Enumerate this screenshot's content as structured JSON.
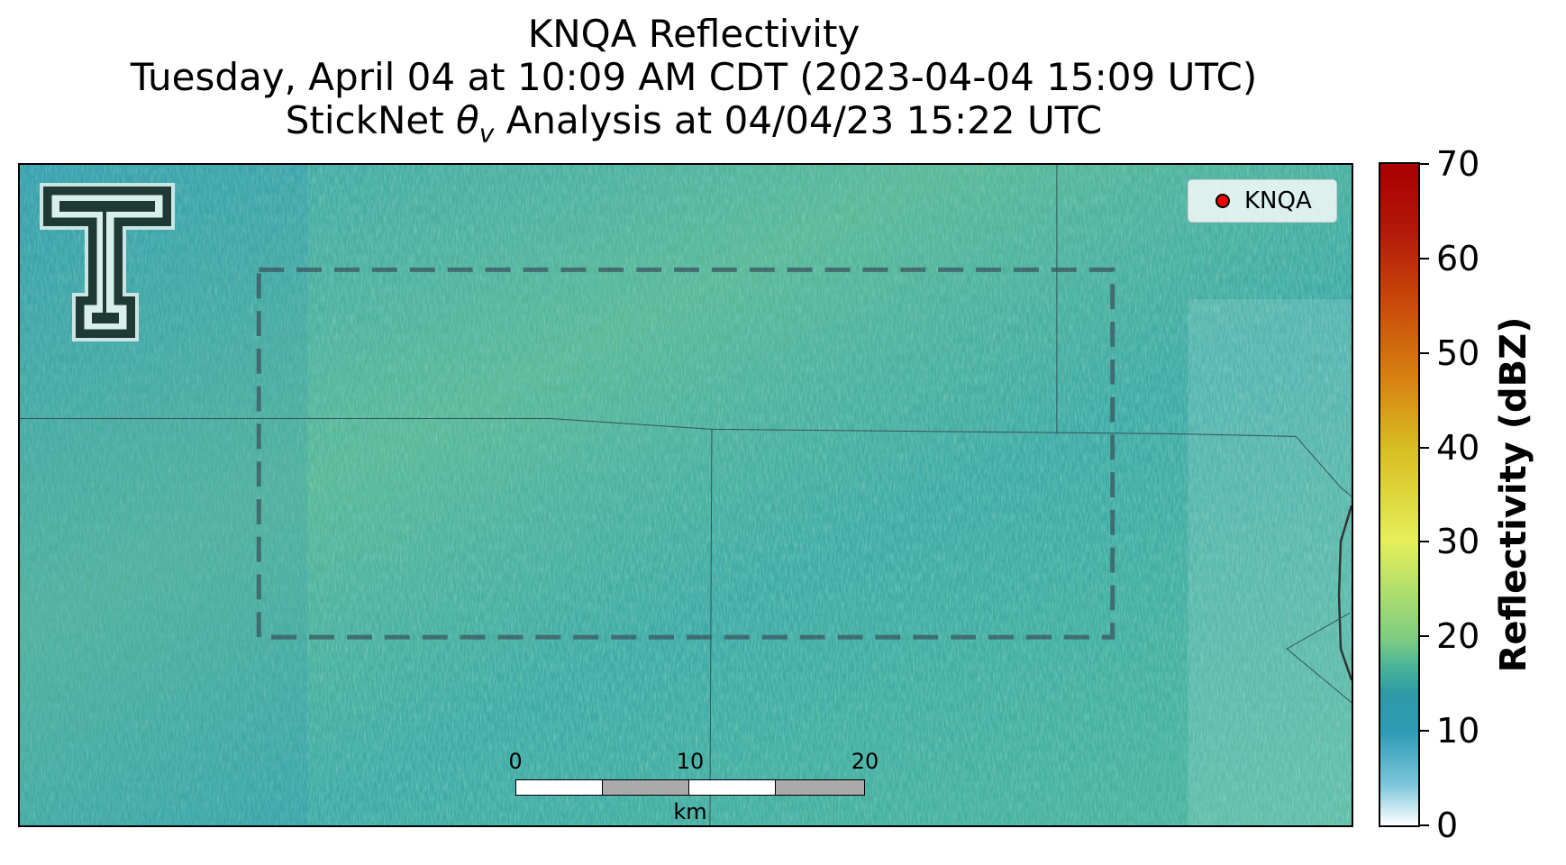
{
  "title": {
    "line1": "KNQA Reflectivity",
    "line2": "Tuesday, April 04 at 10:09 AM CDT (2023-04-04 15:09 UTC)",
    "line3_prefix": "StickNet ",
    "line3_symbol": "θ",
    "line3_subscript": "v",
    "line3_suffix": " Analysis at 04/04/23 15:22 UTC"
  },
  "legend": {
    "station_label": "KNQA",
    "marker_color": "#ee0000"
  },
  "scalebar": {
    "ticks": [
      "0",
      "10",
      "20"
    ],
    "unit": "km"
  },
  "colorbar": {
    "label": "Reflectivity (dBZ)",
    "min": 0,
    "max": 70,
    "ticks": [
      "0",
      "10",
      "20",
      "30",
      "40",
      "50",
      "60",
      "70"
    ]
  },
  "colors": {
    "field_base": "#3aa6a4",
    "field_light": "#6fc48e",
    "field_blue": "#2f8fb8"
  }
}
